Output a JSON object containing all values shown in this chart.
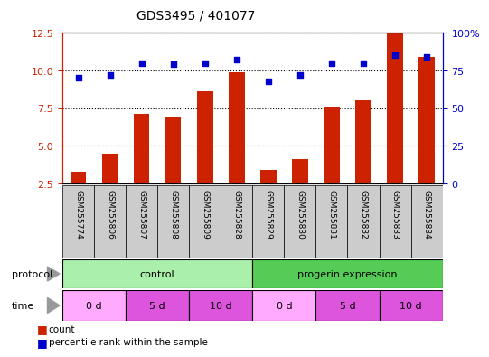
{
  "title": "GDS3495 / 401077",
  "samples": [
    "GSM255774",
    "GSM255806",
    "GSM255807",
    "GSM255808",
    "GSM255809",
    "GSM255828",
    "GSM255829",
    "GSM255830",
    "GSM255831",
    "GSM255832",
    "GSM255833",
    "GSM255834"
  ],
  "counts": [
    3.3,
    4.5,
    7.1,
    6.9,
    8.6,
    9.9,
    3.4,
    4.1,
    7.6,
    8.0,
    12.5,
    10.9
  ],
  "percentile_ranks_right": [
    70,
    72,
    80,
    79,
    80,
    82,
    68,
    72,
    80,
    80,
    85,
    84
  ],
  "bar_color": "#cc2200",
  "dot_color": "#0000cc",
  "left_ylim": [
    2.5,
    12.5
  ],
  "left_yticks": [
    2.5,
    5.0,
    7.5,
    10.0,
    12.5
  ],
  "right_ylim": [
    0,
    100
  ],
  "right_yticks": [
    0,
    25,
    50,
    75,
    100
  ],
  "right_yticklabels": [
    "0",
    "25",
    "50",
    "75",
    "100%"
  ],
  "protocol_groups": [
    {
      "label": "control",
      "start": 0,
      "end": 6,
      "color": "#aaf0aa"
    },
    {
      "label": "progerin expression",
      "start": 6,
      "end": 12,
      "color": "#55cc55"
    }
  ],
  "time_groups": [
    {
      "label": "0 d",
      "start": 0,
      "end": 2,
      "color": "#ffaaff"
    },
    {
      "label": "5 d",
      "start": 2,
      "end": 4,
      "color": "#dd55dd"
    },
    {
      "label": "10 d",
      "start": 4,
      "end": 6,
      "color": "#dd55dd"
    },
    {
      "label": "0 d",
      "start": 6,
      "end": 8,
      "color": "#ffaaff"
    },
    {
      "label": "5 d",
      "start": 8,
      "end": 10,
      "color": "#dd55dd"
    },
    {
      "label": "10 d",
      "start": 10,
      "end": 12,
      "color": "#dd55dd"
    }
  ],
  "bg_color": "#ffffff",
  "label_row_color": "#cccccc",
  "left_ylabel_color": "#cc2200",
  "right_ylabel_color": "#0000cc",
  "arrow_color": "#999999"
}
